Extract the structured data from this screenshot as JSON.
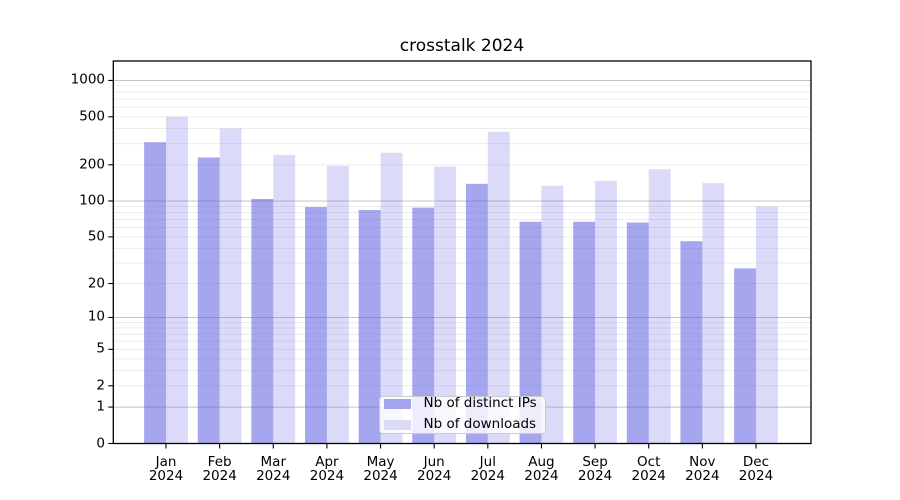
{
  "chart_data": {
    "type": "bar",
    "title": "crosstalk 2024",
    "xlabel": "",
    "ylabel": "",
    "x_months": [
      "Jan",
      "Feb",
      "Mar",
      "Apr",
      "May",
      "Jun",
      "Jul",
      "Aug",
      "Sep",
      "Oct",
      "Nov",
      "Dec"
    ],
    "x_year": "2024",
    "series": [
      {
        "name": "Nb of distinct IPs",
        "values": [
          308,
          230,
          104,
          89,
          84,
          88,
          139,
          67,
          67,
          66,
          46,
          27
        ]
      },
      {
        "name": "Nb of downloads",
        "values": [
          500,
          400,
          242,
          196,
          252,
          193,
          375,
          134,
          147,
          184,
          141,
          90
        ]
      }
    ],
    "y_scale": "log1p",
    "y_ticks": [
      0,
      1,
      2,
      5,
      10,
      20,
      50,
      100,
      200,
      500,
      1000
    ],
    "ylim": [
      0,
      1430
    ],
    "grid": {
      "major_lines": [
        1,
        10,
        100,
        1000
      ],
      "minor_lines_per_decade": [
        2,
        3,
        4,
        5,
        6,
        7,
        8,
        9
      ]
    },
    "legend_position": "lower center"
  },
  "colors": {
    "bar_ips_fill": "rgba(92,92,226,0.55)",
    "bar_downloads_fill": "rgba(92,92,226,0.22)",
    "bar_ips_solid": "#a5a5ef",
    "bar_downloads_solid": "#dbdbf9",
    "grid_major": "#c4c4c4",
    "grid_minor": "#ececec",
    "spine": "#000000",
    "tick": "#000000",
    "text": "#000000",
    "legend_border": "#cccccc"
  }
}
